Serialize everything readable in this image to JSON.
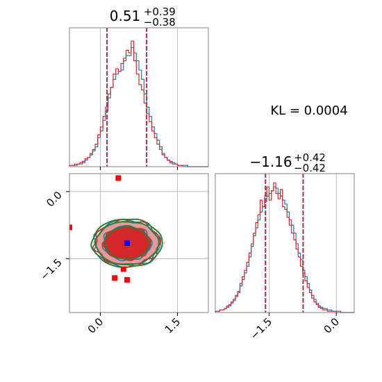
{
  "chart_data": {
    "type": "corner",
    "kl_text": "KL = 0.0004",
    "colors": {
      "blue_series": "#1f77b4",
      "red_series": "#d62728",
      "green_contour": "#2e7d32",
      "grid": "#b0b0b0",
      "spine": "#808080",
      "marker_red": "#ff0000",
      "marker_blue": "#0000ff"
    },
    "params": [
      {
        "title": {
          "value": "0.51",
          "plus": "+0.39",
          "minus": "−0.38"
        },
        "range": [
          -0.6,
          2.1
        ],
        "ticks": [
          0.0,
          1.5
        ],
        "tick_labels": [
          "0.0",
          "1.5"
        ],
        "quantiles": [
          0.13,
          0.51,
          0.9
        ],
        "grid": [
          0.0,
          1.5
        ]
      },
      {
        "title": {
          "value": "−1.16",
          "plus": "+0.42",
          "minus": "−0.42"
        },
        "range": [
          -2.7,
          0.4
        ],
        "ticks": [
          -1.5,
          0.0
        ],
        "tick_labels": [
          "−1.5",
          "0.0"
        ],
        "quantiles": [
          -1.58,
          -1.16,
          -0.74
        ],
        "grid": [
          -1.5,
          0.0
        ]
      }
    ],
    "hist1": {
      "x": [
        -0.6,
        -0.5,
        -0.45,
        -0.4,
        -0.35,
        -0.3,
        -0.25,
        -0.2,
        -0.15,
        -0.1,
        -0.05,
        0.0,
        0.05,
        0.1,
        0.15,
        0.2,
        0.25,
        0.3,
        0.35,
        0.4,
        0.45,
        0.5,
        0.55,
        0.6,
        0.65,
        0.7,
        0.75,
        0.8,
        0.85,
        0.9,
        0.95,
        1.0,
        1.05,
        1.1,
        1.15,
        1.2,
        1.25,
        1.3,
        1.35,
        1.4,
        1.45,
        1.5,
        1.6,
        1.7,
        1.8,
        1.9,
        2.0,
        2.1
      ],
      "blue": [
        0.01,
        0.01,
        0.02,
        0.02,
        0.03,
        0.05,
        0.07,
        0.09,
        0.12,
        0.15,
        0.22,
        0.27,
        0.35,
        0.42,
        0.52,
        0.6,
        0.66,
        0.7,
        0.72,
        0.73,
        0.8,
        0.84,
        0.84,
        0.9,
        0.86,
        0.8,
        0.73,
        0.66,
        0.55,
        0.45,
        0.38,
        0.3,
        0.25,
        0.2,
        0.15,
        0.1,
        0.07,
        0.05,
        0.04,
        0.03,
        0.02,
        0.01,
        0.01,
        0.0,
        0.0,
        0.0,
        0.0
      ],
      "red": [
        0.01,
        0.02,
        0.02,
        0.03,
        0.04,
        0.06,
        0.07,
        0.1,
        0.13,
        0.17,
        0.24,
        0.3,
        0.38,
        0.45,
        0.55,
        0.6,
        0.7,
        0.74,
        0.72,
        0.78,
        0.82,
        0.88,
        0.86,
        0.95,
        0.8,
        0.7,
        0.62,
        0.58,
        0.48,
        0.4,
        0.34,
        0.27,
        0.22,
        0.17,
        0.13,
        0.09,
        0.07,
        0.05,
        0.03,
        0.02,
        0.02,
        0.01,
        0.0,
        0.0,
        0.0,
        0.0,
        0.0
      ]
    },
    "hist2": {
      "x": [
        -2.7,
        -2.6,
        -2.5,
        -2.45,
        -2.4,
        -2.35,
        -2.3,
        -2.25,
        -2.2,
        -2.15,
        -2.1,
        -2.05,
        -2.0,
        -1.95,
        -1.9,
        -1.85,
        -1.8,
        -1.75,
        -1.7,
        -1.65,
        -1.6,
        -1.55,
        -1.5,
        -1.45,
        -1.4,
        -1.35,
        -1.3,
        -1.25,
        -1.2,
        -1.15,
        -1.1,
        -1.05,
        -1.0,
        -0.95,
        -0.9,
        -0.85,
        -0.8,
        -0.75,
        -0.7,
        -0.65,
        -0.6,
        -0.55,
        -0.5,
        -0.45,
        -0.4,
        -0.35,
        -0.3,
        -0.2,
        -0.1,
        0.0,
        0.1,
        0.2,
        0.4
      ],
      "blue": [
        0.01,
        0.02,
        0.03,
        0.04,
        0.05,
        0.07,
        0.09,
        0.12,
        0.15,
        0.2,
        0.25,
        0.3,
        0.35,
        0.42,
        0.5,
        0.58,
        0.64,
        0.7,
        0.76,
        0.8,
        0.84,
        0.88,
        0.9,
        0.92,
        0.95,
        0.94,
        0.9,
        0.88,
        0.85,
        0.82,
        0.76,
        0.7,
        0.66,
        0.6,
        0.52,
        0.45,
        0.4,
        0.32,
        0.27,
        0.22,
        0.17,
        0.13,
        0.1,
        0.07,
        0.05,
        0.04,
        0.03,
        0.02,
        0.01,
        0.01,
        0.0,
        0.0
      ],
      "red": [
        0.01,
        0.02,
        0.03,
        0.05,
        0.06,
        0.08,
        0.1,
        0.13,
        0.16,
        0.22,
        0.27,
        0.32,
        0.38,
        0.45,
        0.52,
        0.6,
        0.68,
        0.74,
        0.85,
        0.8,
        0.88,
        0.95,
        0.85,
        0.92,
        0.98,
        0.9,
        0.86,
        0.93,
        0.8,
        0.78,
        0.72,
        0.66,
        0.6,
        0.55,
        0.48,
        0.42,
        0.35,
        0.3,
        0.24,
        0.19,
        0.15,
        0.11,
        0.08,
        0.06,
        0.04,
        0.03,
        0.02,
        0.01,
        0.01,
        0.0,
        0.0,
        0.0
      ]
    },
    "contours": {
      "center": [
        0.52,
        -1.15
      ],
      "fill_outer": {
        "rx": 0.62,
        "ry": 0.5,
        "color": "#e89a9a"
      },
      "fill_inner": {
        "rx": 0.46,
        "ry": 0.37,
        "color": "#d62728"
      },
      "blue_levels": [
        [
          0.47,
          0.38
        ],
        [
          0.64,
          0.52
        ]
      ],
      "red_levels": [
        [
          0.45,
          0.37
        ],
        [
          0.63,
          0.5
        ]
      ],
      "green_levels": [
        [
          0.43,
          0.36
        ],
        [
          0.61,
          0.48
        ],
        [
          0.68,
          0.54
        ]
      ]
    },
    "markers_red": [
      [
        0.35,
        0.3
      ],
      [
        -0.75,
        -1.3
      ],
      [
        -0.6,
        -0.8
      ],
      [
        0.28,
        -1.93
      ],
      [
        0.52,
        -1.97
      ],
      [
        0.45,
        -1.73
      ]
    ],
    "marker_blue": [
      0.52,
      -1.15
    ]
  }
}
